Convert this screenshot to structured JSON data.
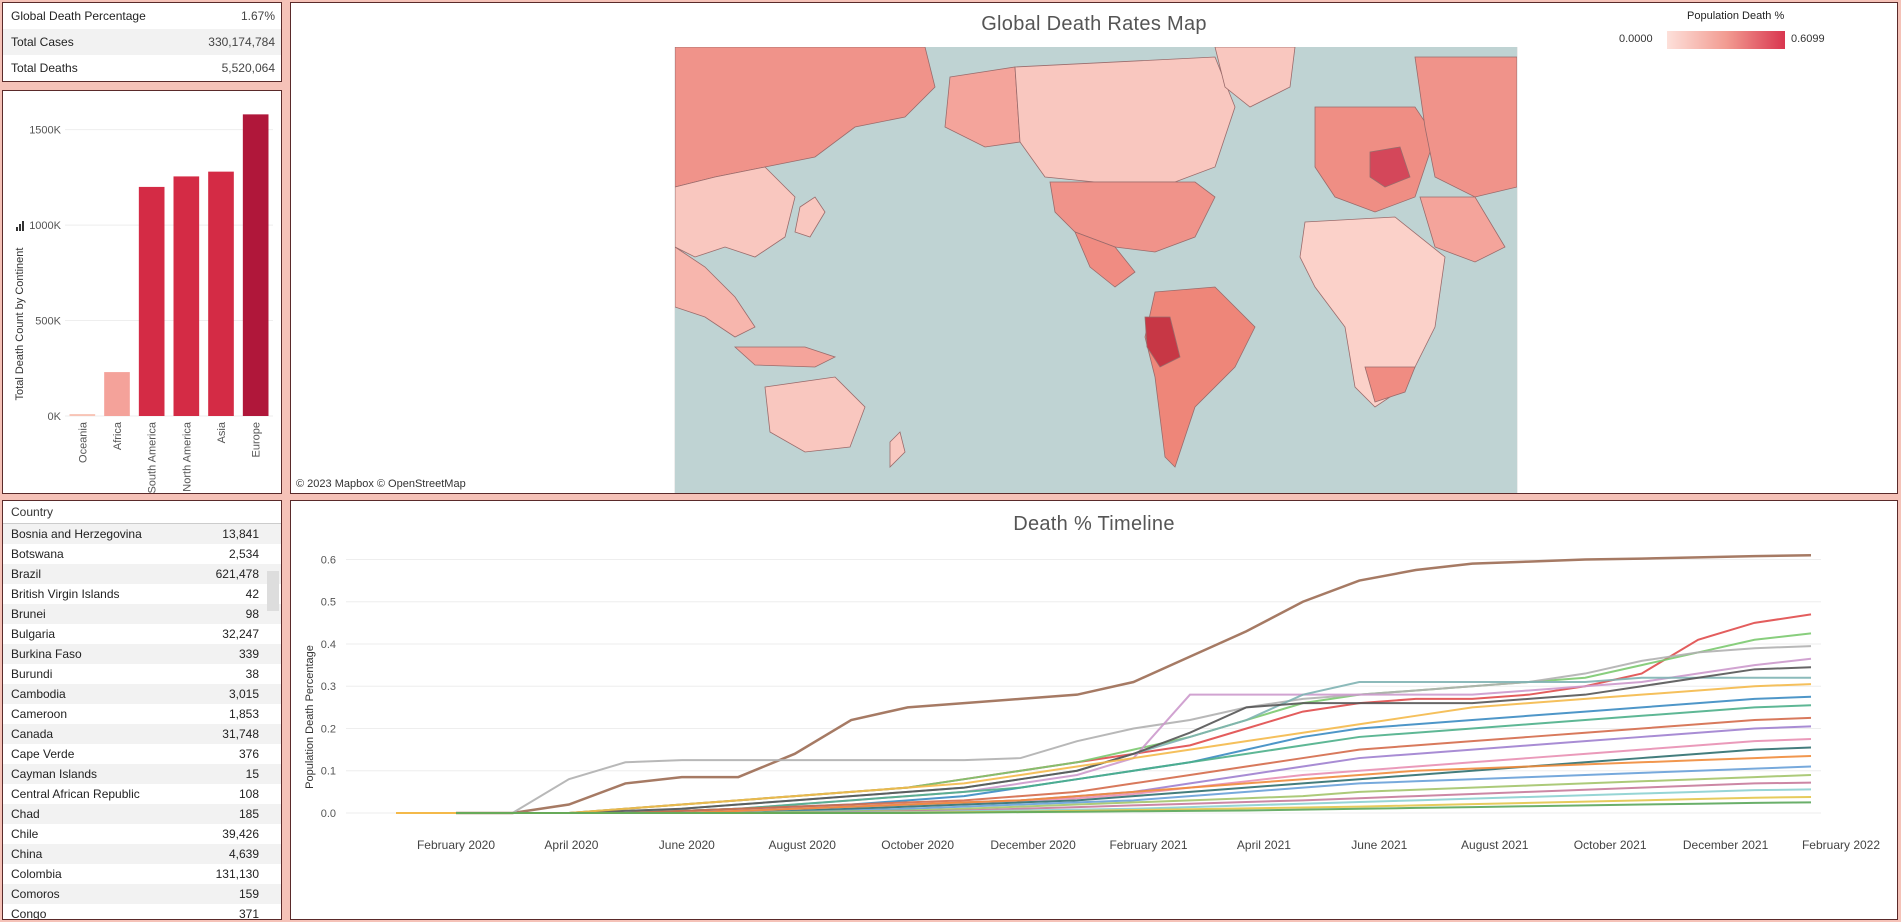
{
  "kpis": [
    {
      "label": "Global Death Percentage",
      "value": "1.67%"
    },
    {
      "label": "Total Cases",
      "value": "330,174,784"
    },
    {
      "label": "Total Deaths",
      "value": "5,520,064"
    }
  ],
  "bar_chart": {
    "chart_data": {
      "type": "bar",
      "categories": [
        "Oceania",
        "Africa",
        "South America",
        "North America",
        "Asia",
        "Europe"
      ],
      "values": [
        10000,
        230000,
        1200000,
        1255000,
        1280000,
        1580000
      ],
      "ylabel": "Total Death Count by Continent",
      "ylim": [
        0,
        1650000
      ],
      "yticks": [
        {
          "v": 0,
          "label": "0K"
        },
        {
          "v": 500000,
          "label": "500K"
        },
        {
          "v": 1000000,
          "label": "1000K"
        },
        {
          "v": 1500000,
          "label": "1500K"
        }
      ],
      "colors": [
        "#f8c4b6",
        "#f4a29a",
        "#d42b45",
        "#d42b45",
        "#d42b45",
        "#b0173a"
      ]
    }
  },
  "map": {
    "title": "Global Death Rates Map",
    "legend_title": "Population Death %",
    "legend_min": "0.0000",
    "legend_max": "0.6099",
    "attribution": "© 2023 Mapbox  © OpenStreetMap",
    "ocean_color": "#bfd3d3"
  },
  "table": {
    "header": "Country",
    "rows": [
      {
        "country": "Bosnia and Herzegovina",
        "value": "13,841"
      },
      {
        "country": "Botswana",
        "value": "2,534"
      },
      {
        "country": "Brazil",
        "value": "621,478"
      },
      {
        "country": "British Virgin Islands",
        "value": "42"
      },
      {
        "country": "Brunei",
        "value": "98"
      },
      {
        "country": "Bulgaria",
        "value": "32,247"
      },
      {
        "country": "Burkina Faso",
        "value": "339"
      },
      {
        "country": "Burundi",
        "value": "38"
      },
      {
        "country": "Cambodia",
        "value": "3,015"
      },
      {
        "country": "Cameroon",
        "value": "1,853"
      },
      {
        "country": "Canada",
        "value": "31,748"
      },
      {
        "country": "Cape Verde",
        "value": "376"
      },
      {
        "country": "Cayman Islands",
        "value": "15"
      },
      {
        "country": "Central African Republic",
        "value": "108"
      },
      {
        "country": "Chad",
        "value": "185"
      },
      {
        "country": "Chile",
        "value": "39,426"
      },
      {
        "country": "China",
        "value": "4,639"
      },
      {
        "country": "Colombia",
        "value": "131,130"
      },
      {
        "country": "Comoros",
        "value": "159"
      },
      {
        "country": "Congo",
        "value": "371"
      }
    ]
  },
  "timeline": {
    "chart_data": {
      "type": "line",
      "title": "Death % Timeline",
      "ylabel": "Population Death Percentage",
      "ylim": [
        0,
        0.62
      ],
      "yticks": [
        "0.0",
        "0.1",
        "0.2",
        "0.3",
        "0.4",
        "0.5",
        "0.6"
      ],
      "x": [
        "2020-01",
        "2020-02",
        "2020-03",
        "2020-04",
        "2020-05",
        "2020-06",
        "2020-07",
        "2020-08",
        "2020-09",
        "2020-10",
        "2020-11",
        "2020-12",
        "2021-01",
        "2021-02",
        "2021-03",
        "2021-04",
        "2021-05",
        "2021-06",
        "2021-07",
        "2021-08",
        "2021-09",
        "2021-10",
        "2021-11",
        "2021-12",
        "2022-01"
      ],
      "xticks": [
        "February 2020",
        "April 2020",
        "June 2020",
        "August 2020",
        "October 2020",
        "December 2020",
        "February 2021",
        "April 2021",
        "June 2021",
        "August 2021",
        "October 2021",
        "December 2021",
        "February 2022"
      ],
      "series": [
        {
          "color": "#9c6b53",
          "values": [
            0,
            0,
            0.02,
            0.07,
            0.085,
            0.085,
            0.14,
            0.22,
            0.25,
            0.26,
            0.27,
            0.28,
            0.31,
            0.37,
            0.43,
            0.5,
            0.55,
            0.575,
            0.59,
            0.595,
            0.6,
            0.602,
            0.605,
            0.608,
            0.61
          ]
        },
        {
          "color": "#e04b4b",
          "values": [
            0,
            0,
            0,
            0.01,
            0.02,
            0.03,
            0.04,
            0.05,
            0.06,
            0.08,
            0.1,
            0.12,
            0.14,
            0.16,
            0.2,
            0.24,
            0.26,
            0.27,
            0.27,
            0.28,
            0.3,
            0.33,
            0.41,
            0.45,
            0.47
          ]
        },
        {
          "color": "#7bc96f",
          "values": [
            0,
            0,
            0,
            0.01,
            0.02,
            0.03,
            0.04,
            0.05,
            0.06,
            0.08,
            0.1,
            0.12,
            0.15,
            0.18,
            0.22,
            0.26,
            0.28,
            0.29,
            0.3,
            0.31,
            0.32,
            0.35,
            0.38,
            0.41,
            0.425
          ]
        },
        {
          "color": "#b0b0b0",
          "values": [
            0,
            0,
            0.08,
            0.12,
            0.125,
            0.125,
            0.125,
            0.125,
            0.125,
            0.125,
            0.13,
            0.17,
            0.2,
            0.22,
            0.25,
            0.27,
            0.28,
            0.29,
            0.3,
            0.31,
            0.33,
            0.36,
            0.38,
            0.39,
            0.395
          ]
        },
        {
          "color": "#cc99cc",
          "values": [
            0,
            0,
            0,
            0,
            0.005,
            0.01,
            0.02,
            0.03,
            0.04,
            0.05,
            0.07,
            0.09,
            0.13,
            0.28,
            0.28,
            0.28,
            0.28,
            0.28,
            0.28,
            0.29,
            0.3,
            0.31,
            0.33,
            0.35,
            0.365
          ]
        },
        {
          "color": "#7fb2b2",
          "values": [
            0,
            0,
            0,
            0,
            0.01,
            0.02,
            0.03,
            0.04,
            0.05,
            0.06,
            0.08,
            0.1,
            0.14,
            0.18,
            0.22,
            0.28,
            0.31,
            0.31,
            0.31,
            0.31,
            0.31,
            0.32,
            0.32,
            0.32,
            0.32
          ]
        },
        {
          "color": "#555555",
          "values": [
            0,
            0,
            0,
            0.005,
            0.01,
            0.02,
            0.03,
            0.04,
            0.05,
            0.06,
            0.08,
            0.1,
            0.14,
            0.19,
            0.25,
            0.26,
            0.26,
            0.26,
            0.26,
            0.27,
            0.28,
            0.3,
            0.32,
            0.34,
            0.345
          ]
        },
        {
          "color": "#f4b94a",
          "values": [
            0,
            0,
            0,
            0.01,
            0.02,
            0.03,
            0.04,
            0.05,
            0.06,
            0.07,
            0.09,
            0.11,
            0.13,
            0.15,
            0.17,
            0.19,
            0.21,
            0.23,
            0.25,
            0.26,
            0.27,
            0.28,
            0.29,
            0.3,
            0.305
          ]
        },
        {
          "color": "#3b8bc2",
          "values": [
            0,
            0,
            0,
            0,
            0.005,
            0.01,
            0.015,
            0.02,
            0.03,
            0.04,
            0.06,
            0.08,
            0.1,
            0.12,
            0.15,
            0.18,
            0.2,
            0.21,
            0.22,
            0.23,
            0.24,
            0.25,
            0.26,
            0.27,
            0.275
          ]
        },
        {
          "color": "#4caf8a",
          "values": [
            0,
            0,
            0,
            0,
            0.005,
            0.01,
            0.02,
            0.03,
            0.04,
            0.05,
            0.06,
            0.08,
            0.1,
            0.12,
            0.14,
            0.16,
            0.18,
            0.19,
            0.2,
            0.21,
            0.22,
            0.23,
            0.24,
            0.25,
            0.255
          ]
        },
        {
          "color": "#d46a4a",
          "values": [
            0,
            0,
            0,
            0,
            0.005,
            0.01,
            0.015,
            0.02,
            0.025,
            0.03,
            0.04,
            0.05,
            0.07,
            0.09,
            0.11,
            0.13,
            0.15,
            0.16,
            0.17,
            0.18,
            0.19,
            0.2,
            0.21,
            0.22,
            0.225
          ]
        },
        {
          "color": "#9e7fcf",
          "values": [
            0,
            0,
            0,
            0,
            0,
            0.005,
            0.01,
            0.015,
            0.02,
            0.025,
            0.03,
            0.04,
            0.05,
            0.07,
            0.09,
            0.11,
            0.13,
            0.14,
            0.15,
            0.16,
            0.17,
            0.18,
            0.19,
            0.2,
            0.205
          ]
        },
        {
          "color": "#e88fb3",
          "values": [
            0,
            0,
            0,
            0,
            0,
            0.005,
            0.01,
            0.015,
            0.02,
            0.025,
            0.03,
            0.035,
            0.045,
            0.06,
            0.075,
            0.09,
            0.1,
            0.11,
            0.12,
            0.13,
            0.14,
            0.15,
            0.16,
            0.17,
            0.175
          ]
        },
        {
          "color": "#2f6f6f",
          "values": [
            0,
            0,
            0,
            0,
            0,
            0,
            0.005,
            0.01,
            0.015,
            0.02,
            0.025,
            0.03,
            0.04,
            0.05,
            0.06,
            0.07,
            0.08,
            0.09,
            0.1,
            0.11,
            0.12,
            0.13,
            0.14,
            0.15,
            0.155
          ]
        },
        {
          "color": "#f08b3a",
          "values": [
            0,
            0,
            0,
            0,
            0,
            0.005,
            0.01,
            0.015,
            0.02,
            0.025,
            0.03,
            0.04,
            0.05,
            0.06,
            0.07,
            0.08,
            0.09,
            0.1,
            0.105,
            0.11,
            0.115,
            0.12,
            0.125,
            0.13,
            0.135
          ]
        },
        {
          "color": "#68a0d8",
          "values": [
            0,
            0,
            0,
            0,
            0,
            0,
            0.003,
            0.006,
            0.01,
            0.015,
            0.02,
            0.025,
            0.03,
            0.04,
            0.05,
            0.06,
            0.07,
            0.075,
            0.08,
            0.085,
            0.09,
            0.095,
            0.1,
            0.105,
            0.11
          ]
        },
        {
          "color": "#a3c46a",
          "values": [
            0,
            0,
            0,
            0,
            0,
            0,
            0.002,
            0.004,
            0.006,
            0.01,
            0.015,
            0.02,
            0.025,
            0.03,
            0.035,
            0.04,
            0.05,
            0.055,
            0.06,
            0.065,
            0.07,
            0.075,
            0.08,
            0.085,
            0.09
          ]
        },
        {
          "color": "#c77a9a",
          "values": [
            0,
            0,
            0,
            0,
            0,
            0,
            0,
            0.002,
            0.004,
            0.006,
            0.01,
            0.014,
            0.018,
            0.022,
            0.026,
            0.03,
            0.035,
            0.04,
            0.045,
            0.05,
            0.055,
            0.06,
            0.065,
            0.07,
            0.072
          ]
        },
        {
          "color": "#8bd0d0",
          "values": [
            0,
            0,
            0,
            0,
            0,
            0,
            0,
            0.001,
            0.002,
            0.004,
            0.006,
            0.008,
            0.01,
            0.014,
            0.018,
            0.022,
            0.026,
            0.03,
            0.034,
            0.038,
            0.042,
            0.046,
            0.05,
            0.054,
            0.056
          ]
        },
        {
          "color": "#e3c54a",
          "values": [
            0,
            0,
            0,
            0,
            0,
            0,
            0,
            0,
            0.001,
            0.002,
            0.003,
            0.005,
            0.007,
            0.009,
            0.011,
            0.013,
            0.015,
            0.018,
            0.021,
            0.024,
            0.027,
            0.03,
            0.033,
            0.036,
            0.038
          ]
        },
        {
          "color": "#5aa65a",
          "values": [
            0,
            0,
            0,
            0,
            0,
            0,
            0,
            0,
            0,
            0.001,
            0.002,
            0.003,
            0.004,
            0.005,
            0.006,
            0.008,
            0.01,
            0.012,
            0.014,
            0.016,
            0.018,
            0.02,
            0.022,
            0.024,
            0.025
          ]
        }
      ]
    }
  }
}
